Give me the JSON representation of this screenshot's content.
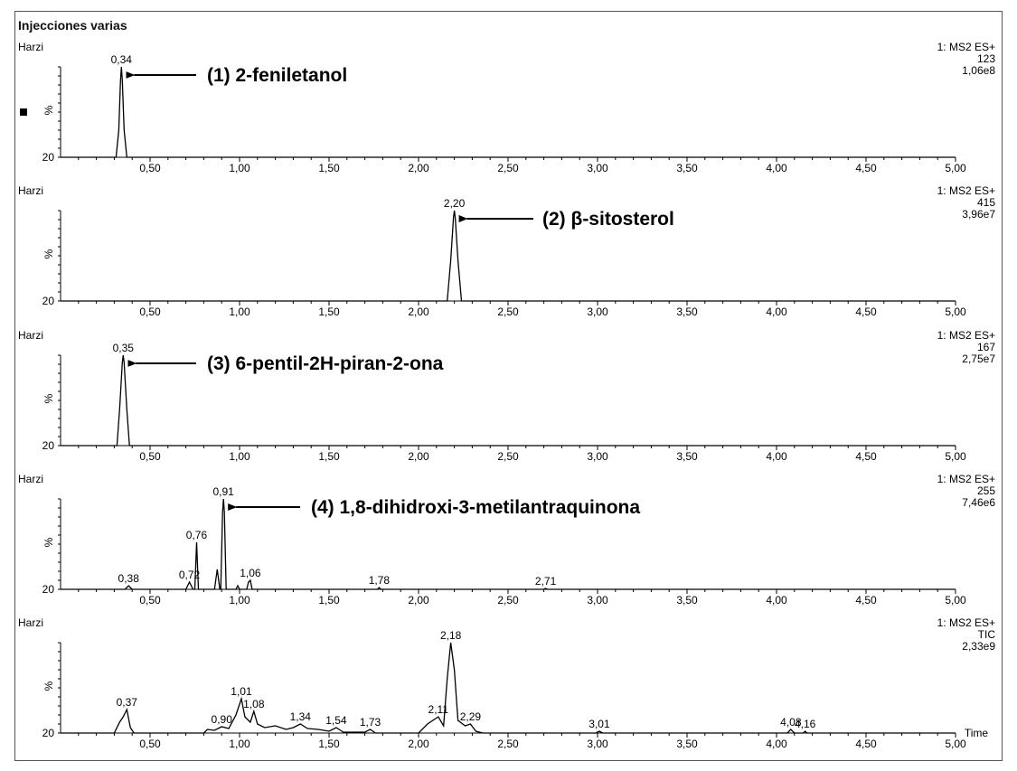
{
  "title": "Injecciones  varias",
  "chart_data": [
    {
      "type": "line",
      "panel_label": "Harzi",
      "channel": "1: MS2 ES+",
      "trace": "123",
      "intensity": "1,06e8",
      "ylabel": "%",
      "ytick": "20",
      "xlim": [
        0,
        5.0
      ],
      "x_ticks": [
        "0,50",
        "1,00",
        "1,50",
        "2,00",
        "2,50",
        "3,00",
        "3,50",
        "4,00",
        "4,50",
        "5,00"
      ],
      "peaks": [
        {
          "x": 0.34,
          "y": 100,
          "label": "0,34"
        }
      ],
      "profile": [
        [
          0,
          0
        ],
        [
          0.31,
          0
        ],
        [
          0.325,
          30
        ],
        [
          0.335,
          85
        ],
        [
          0.34,
          100
        ],
        [
          0.345,
          85
        ],
        [
          0.355,
          30
        ],
        [
          0.37,
          0
        ],
        [
          5.0,
          0
        ]
      ],
      "annotation": {
        "text": "(1)  2-feniletanol",
        "x": 0.34
      }
    },
    {
      "type": "line",
      "panel_label": "Harzi",
      "channel": "1: MS2 ES+",
      "trace": "415",
      "intensity": "3,96e7",
      "ylabel": "%",
      "ytick": "20",
      "xlim": [
        0,
        5.0
      ],
      "x_ticks": [
        "0,50",
        "1,00",
        "1,50",
        "2,00",
        "2,50",
        "3,00",
        "3,50",
        "4,00",
        "4,50",
        "5,00"
      ],
      "peaks": [
        {
          "x": 2.2,
          "y": 100,
          "label": "2,20"
        }
      ],
      "profile": [
        [
          0,
          0
        ],
        [
          2.16,
          0
        ],
        [
          2.18,
          45
        ],
        [
          2.195,
          92
        ],
        [
          2.2,
          100
        ],
        [
          2.205,
          92
        ],
        [
          2.22,
          45
        ],
        [
          2.24,
          0
        ],
        [
          5.0,
          0
        ]
      ],
      "annotation": {
        "text": "(2)  β-sitosterol",
        "x": 2.2
      }
    },
    {
      "type": "line",
      "panel_label": "Harzi",
      "channel": "1: MS2 ES+",
      "trace": "167",
      "intensity": "2,75e7",
      "ylabel": "%",
      "ytick": "20",
      "xlim": [
        0,
        5.0
      ],
      "x_ticks": [
        "0,50",
        "1,00",
        "1,50",
        "2,00",
        "2,50",
        "3,00",
        "3,50",
        "4,00",
        "4,50",
        "5,00"
      ],
      "peaks": [
        {
          "x": 0.35,
          "y": 100,
          "label": "0,35"
        }
      ],
      "profile": [
        [
          0,
          0
        ],
        [
          0.315,
          0
        ],
        [
          0.33,
          40
        ],
        [
          0.345,
          92
        ],
        [
          0.35,
          100
        ],
        [
          0.355,
          92
        ],
        [
          0.37,
          40
        ],
        [
          0.385,
          0
        ],
        [
          5.0,
          0
        ]
      ],
      "annotation": {
        "text": "(3)  6-pentil-2H-piran-2-ona",
        "x": 0.35
      }
    },
    {
      "type": "line",
      "panel_label": "Harzi",
      "channel": "1: MS2 ES+",
      "trace": "255",
      "intensity": "7,46e6",
      "ylabel": "%",
      "ytick": "20",
      "xlim": [
        0,
        5.0
      ],
      "x_ticks": [
        "0,50",
        "1,00",
        "1,50",
        "2,00",
        "2,50",
        "3,00",
        "3,50",
        "4,00",
        "4,50",
        "5,00"
      ],
      "peaks": [
        {
          "x": 0.38,
          "y": 4,
          "label": "0,38"
        },
        {
          "x": 0.72,
          "y": 8,
          "label": "0,72"
        },
        {
          "x": 0.76,
          "y": 52,
          "label": "0,76"
        },
        {
          "x": 0.91,
          "y": 100,
          "label": "0,91"
        },
        {
          "x": 1.06,
          "y": 10,
          "label": "1,06"
        },
        {
          "x": 1.78,
          "y": 2,
          "label": "1,78"
        },
        {
          "x": 2.71,
          "y": 1,
          "label": "2,71"
        }
      ],
      "profile": [
        [
          0,
          0
        ],
        [
          0.36,
          0
        ],
        [
          0.38,
          4
        ],
        [
          0.4,
          0
        ],
        [
          0.7,
          0
        ],
        [
          0.72,
          8
        ],
        [
          0.74,
          0
        ],
        [
          0.75,
          0
        ],
        [
          0.76,
          52
        ],
        [
          0.77,
          0
        ],
        [
          0.86,
          0
        ],
        [
          0.875,
          22
        ],
        [
          0.89,
          0
        ],
        [
          0.895,
          0
        ],
        [
          0.905,
          85
        ],
        [
          0.91,
          100
        ],
        [
          0.915,
          85
        ],
        [
          0.925,
          0
        ],
        [
          0.98,
          0
        ],
        [
          0.99,
          4
        ],
        [
          1.0,
          0
        ],
        [
          1.04,
          0
        ],
        [
          1.05,
          8
        ],
        [
          1.06,
          10
        ],
        [
          1.07,
          0
        ],
        [
          1.77,
          0
        ],
        [
          1.78,
          2
        ],
        [
          1.79,
          0
        ],
        [
          2.7,
          0
        ],
        [
          2.71,
          1
        ],
        [
          2.72,
          0
        ],
        [
          5.0,
          0
        ]
      ],
      "annotation": {
        "text": "(4)  1,8-dihidroxi-3-metilantraquinona",
        "x": 0.91
      }
    },
    {
      "type": "line",
      "panel_label": "Harzi",
      "channel": "1: MS2 ES+",
      "trace": "TIC",
      "intensity": "2,33e9",
      "ylabel": "%",
      "ytick": "20",
      "xlabel": "Time",
      "xlim": [
        0,
        5.0
      ],
      "x_ticks": [
        "0,50",
        "1,00",
        "1,50",
        "2,00",
        "2,50",
        "3,00",
        "3,50",
        "4,00",
        "4,50",
        "5,00"
      ],
      "peaks": [
        {
          "x": 0.37,
          "y": 26,
          "label": "0,37"
        },
        {
          "x": 0.9,
          "y": 7,
          "label": "0,90"
        },
        {
          "x": 1.01,
          "y": 38,
          "label": "1,01"
        },
        {
          "x": 1.08,
          "y": 24,
          "label": "1,08"
        },
        {
          "x": 1.34,
          "y": 10,
          "label": "1,34"
        },
        {
          "x": 1.54,
          "y": 6,
          "label": "1,54"
        },
        {
          "x": 1.73,
          "y": 4,
          "label": "1,73"
        },
        {
          "x": 2.11,
          "y": 18,
          "label": "2,11"
        },
        {
          "x": 2.18,
          "y": 100,
          "label": "2,18"
        },
        {
          "x": 2.29,
          "y": 10,
          "label": "2,29"
        },
        {
          "x": 3.01,
          "y": 2,
          "label": "3,01"
        },
        {
          "x": 4.08,
          "y": 4,
          "label": "4,08"
        },
        {
          "x": 4.16,
          "y": 2,
          "label": "4,16"
        }
      ],
      "profile": [
        [
          0,
          0
        ],
        [
          0.3,
          0
        ],
        [
          0.33,
          12
        ],
        [
          0.35,
          18
        ],
        [
          0.37,
          26
        ],
        [
          0.39,
          6
        ],
        [
          0.41,
          0
        ],
        [
          0.8,
          0
        ],
        [
          0.82,
          4
        ],
        [
          0.86,
          3
        ],
        [
          0.9,
          7
        ],
        [
          0.94,
          5
        ],
        [
          0.98,
          20
        ],
        [
          1.01,
          38
        ],
        [
          1.03,
          18
        ],
        [
          1.06,
          12
        ],
        [
          1.08,
          24
        ],
        [
          1.1,
          10
        ],
        [
          1.14,
          6
        ],
        [
          1.2,
          8
        ],
        [
          1.26,
          4
        ],
        [
          1.3,
          6
        ],
        [
          1.34,
          10
        ],
        [
          1.38,
          5
        ],
        [
          1.44,
          4
        ],
        [
          1.5,
          2
        ],
        [
          1.54,
          6
        ],
        [
          1.58,
          1
        ],
        [
          1.7,
          1
        ],
        [
          1.73,
          4
        ],
        [
          1.76,
          0
        ],
        [
          2.0,
          0
        ],
        [
          2.05,
          10
        ],
        [
          2.11,
          18
        ],
        [
          2.14,
          8
        ],
        [
          2.16,
          60
        ],
        [
          2.18,
          100
        ],
        [
          2.2,
          70
        ],
        [
          2.22,
          14
        ],
        [
          2.26,
          8
        ],
        [
          2.29,
          10
        ],
        [
          2.32,
          2
        ],
        [
          2.36,
          0
        ],
        [
          2.99,
          0
        ],
        [
          3.01,
          2
        ],
        [
          3.03,
          0
        ],
        [
          4.06,
          0
        ],
        [
          4.08,
          4
        ],
        [
          4.1,
          0
        ],
        [
          4.15,
          0
        ],
        [
          4.16,
          2
        ],
        [
          4.17,
          0
        ],
        [
          5.0,
          0
        ]
      ]
    }
  ]
}
